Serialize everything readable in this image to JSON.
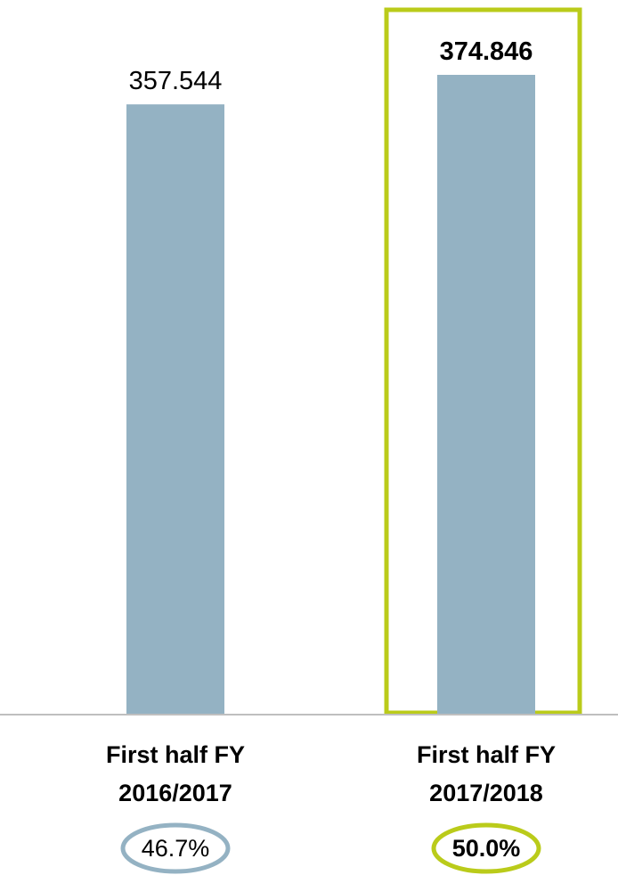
{
  "chart_data": {
    "type": "bar",
    "categories": [
      [
        "First half FY",
        "2016/2017"
      ],
      [
        "First half FY",
        "2017/2018"
      ]
    ],
    "values": [
      357.544,
      374.846
    ],
    "value_labels": [
      "357.544",
      "374.846"
    ],
    "percent_labels": [
      "46.7%",
      "50.0%"
    ],
    "ylim": [
      0,
      374.846
    ],
    "grid": false,
    "highlight_index": 1,
    "colors": {
      "bar": "#94B2C3",
      "highlight": "#BACB1A",
      "circle_normal": "#94B2C3",
      "axis": "#BFBFBF",
      "text": "#000000"
    }
  }
}
